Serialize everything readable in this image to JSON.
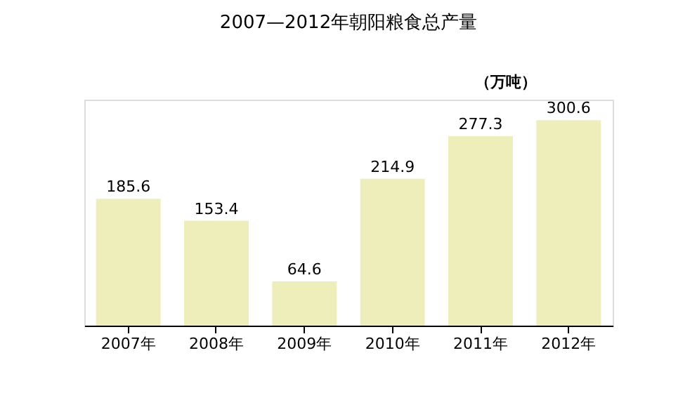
{
  "chart_data": {
    "type": "bar",
    "title": "2007—2012年朝阳粮食总产量",
    "categories": [
      "2007年",
      "2008年",
      "2009年",
      "2010年",
      "2011年",
      "2012年"
    ],
    "values": [
      185.6,
      153.4,
      64.6,
      214.9,
      277.3,
      300.6
    ],
    "color": "#eeeebb",
    "data_labels": true,
    "annotations": [
      "（万吨）"
    ]
  }
}
